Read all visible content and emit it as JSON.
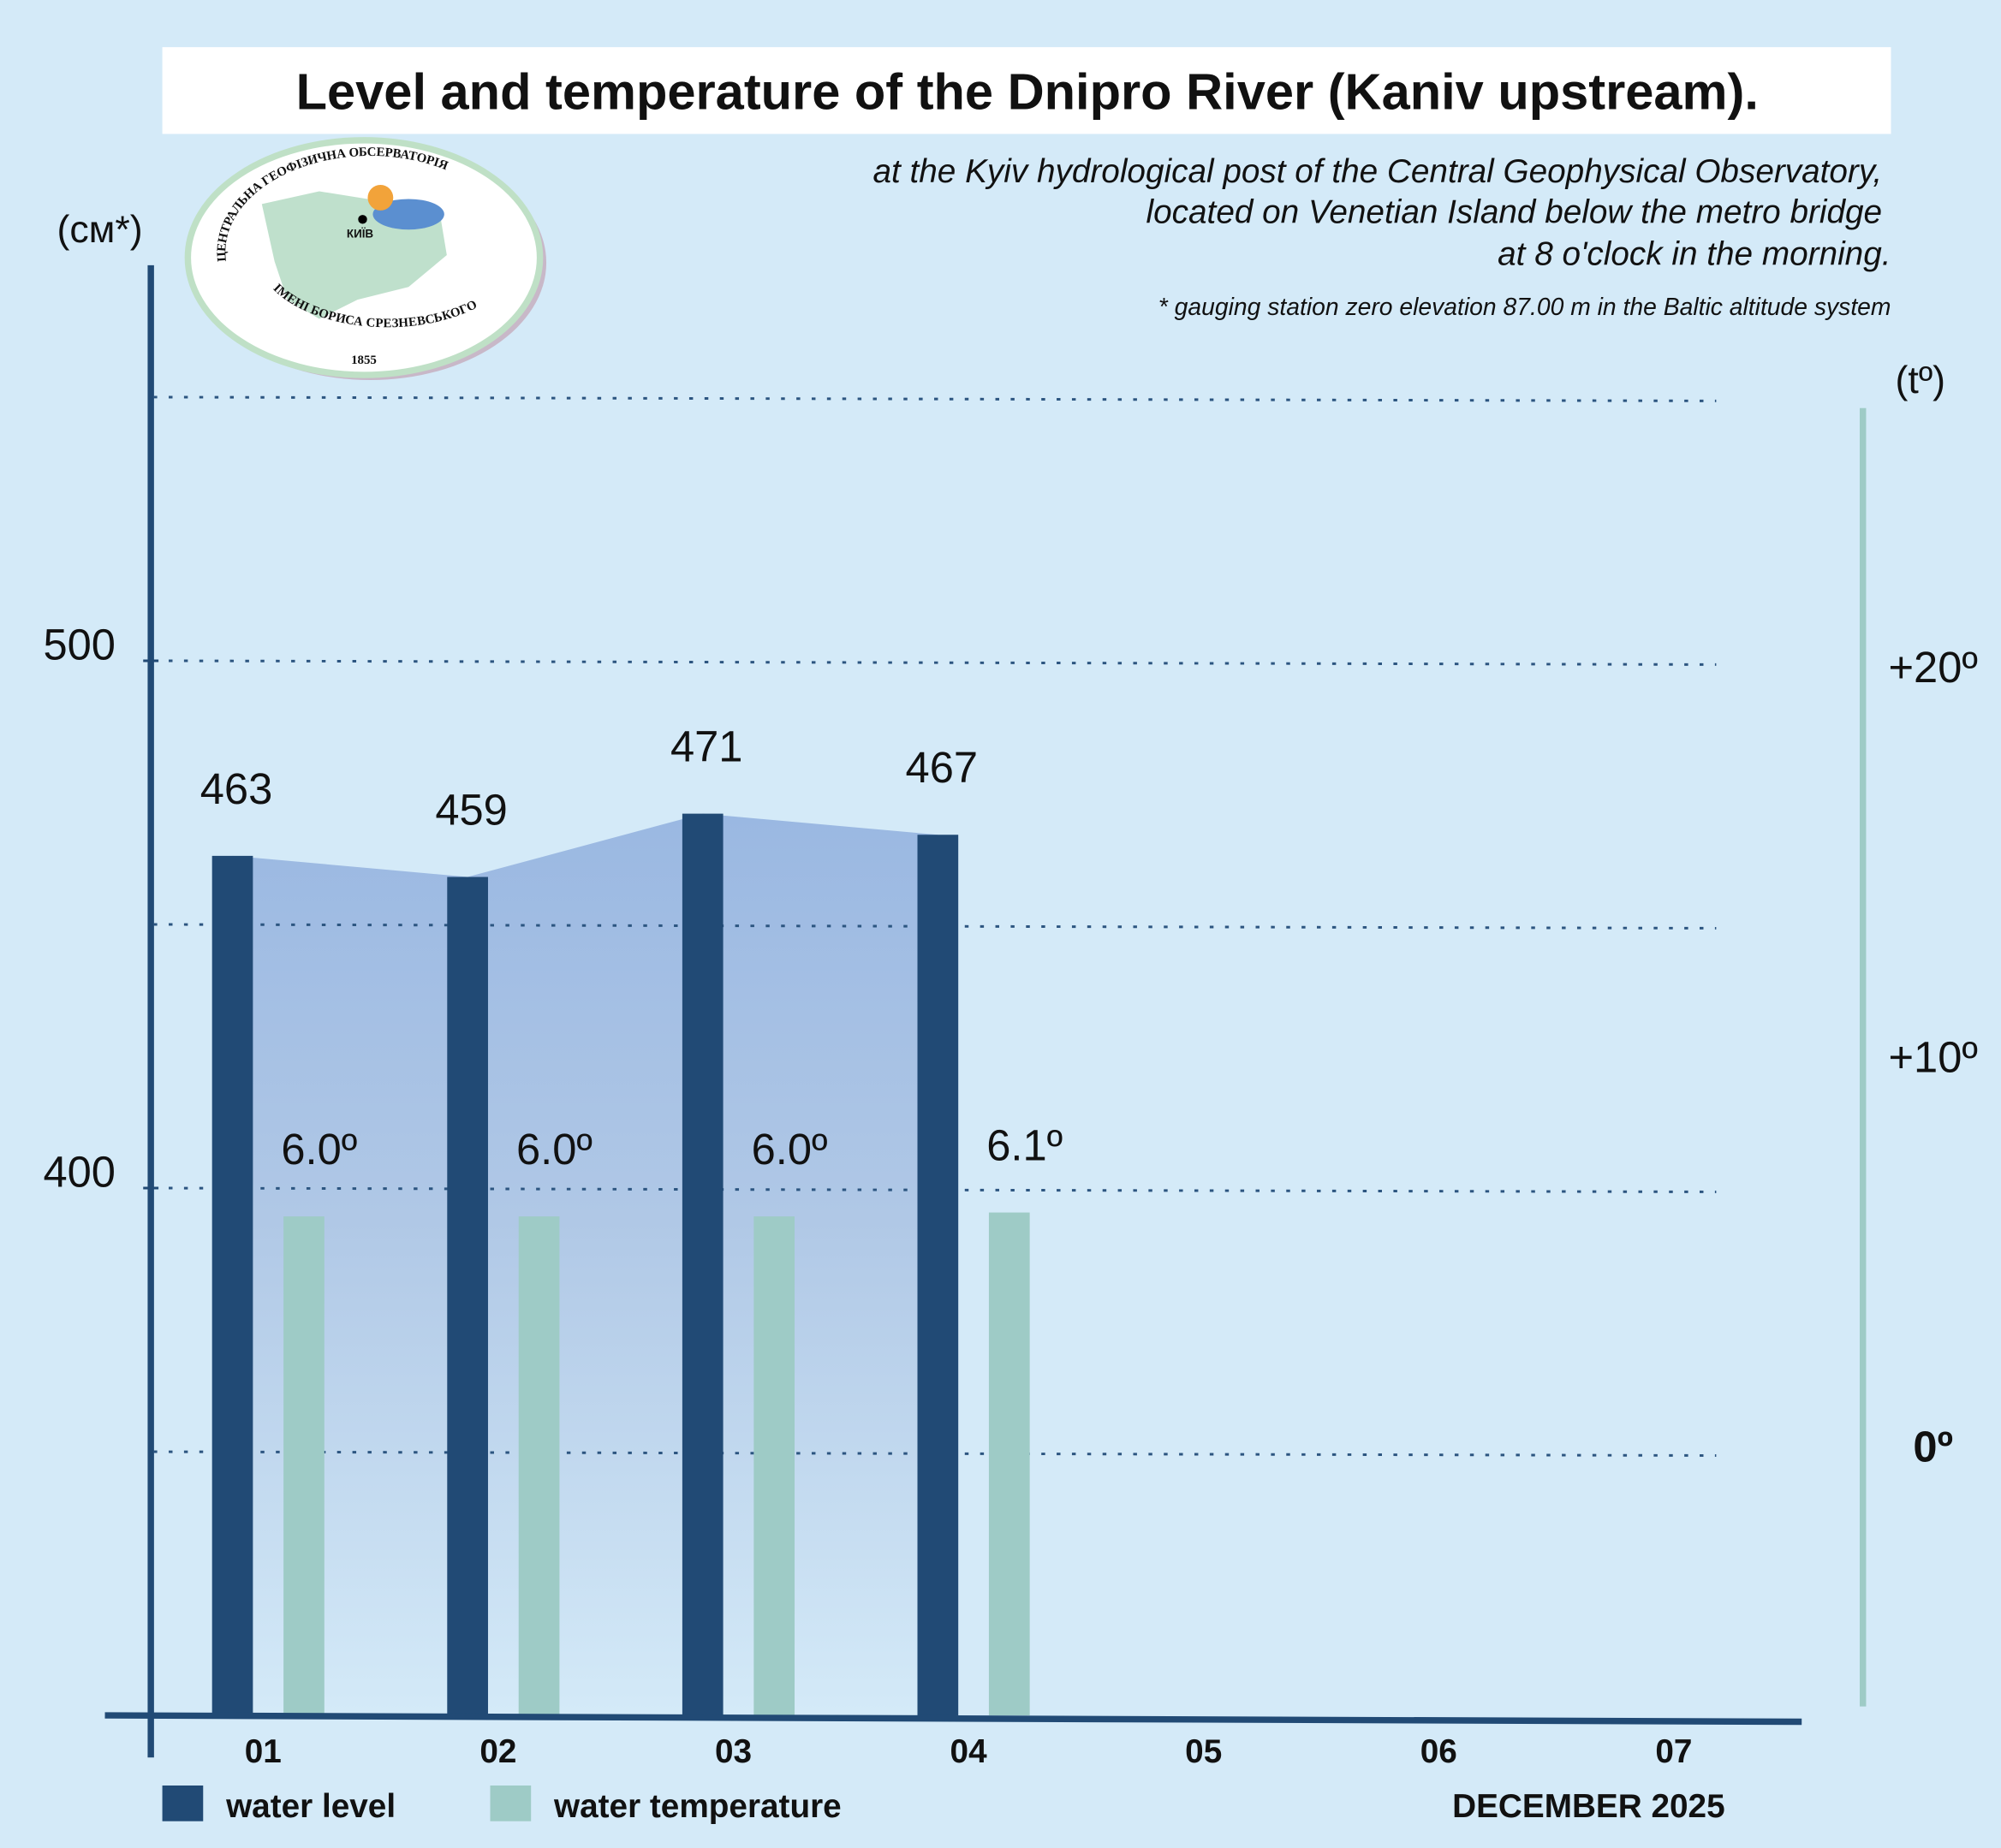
{
  "chart_data": {
    "type": "bar",
    "title": "Level and temperature of the Dnipro River (Kaniv upstream).",
    "subtitle": [
      "at the Kyiv hydrological post of the Central Geophysical Observatory,",
      "located on Venetian Island below the metro bridge",
      "at 8 o'clock in the morning."
    ],
    "footnote": "* gauging station zero elevation 87.00 m in the Baltic altitude system",
    "y_axis_label": "(см*)",
    "y2_axis_label": "(tº)",
    "x_axis_label": "DECEMBER 2025",
    "logo": {
      "top": "ЦЕНТРАЛЬНА ГЕОФІЗИЧНА ОБСЕРВАТОРІЯ",
      "bottom": "ІМЕНІ БОРИСА СРЕЗНЕВСЬКОГО",
      "year": "1855",
      "city": "КИЇВ"
    },
    "categories": [
      "01",
      "02",
      "03",
      "04",
      "05",
      "06",
      "07"
    ],
    "series": [
      {
        "name": "water level",
        "color": "#214a75",
        "values": [
          463,
          459,
          471,
          467,
          null,
          null,
          null
        ]
      },
      {
        "name": "water temperature",
        "color": "#9ecbc6",
        "axis": "y2",
        "values": [
          6.0,
          6.0,
          6.0,
          6.1,
          null,
          null,
          null
        ],
        "value_labels": [
          "6.0º",
          "6.0º",
          "6.0º",
          "6.1º",
          null,
          null,
          null
        ]
      }
    ],
    "ylim": [
      300,
      575
    ],
    "yticks": [
      400,
      500
    ],
    "ygrid": [
      350,
      400,
      450,
      500,
      550
    ],
    "y2lim": [
      -6.8,
      30.4
    ],
    "y2ticks": [
      {
        "value": 0,
        "label": "0º"
      },
      {
        "value": 10,
        "label": "+10º"
      },
      {
        "value": 20,
        "label": "+20º"
      }
    ],
    "area_fill": true
  }
}
